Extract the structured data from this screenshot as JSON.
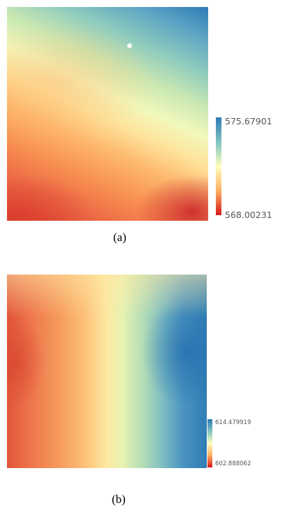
{
  "panels": [
    {
      "caption": "(a)",
      "legend": {
        "max": "575.67901",
        "min": "568.00231",
        "colors": [
          "#2c7bb6",
          "#80c3c0",
          "#ffffbf",
          "#fdae61",
          "#d7191c"
        ]
      }
    },
    {
      "caption": "(b)",
      "legend": {
        "max": "614.479919",
        "min": "602.888062",
        "colors": [
          "#2c7bb6",
          "#80c3c0",
          "#ffffbf",
          "#fdae61",
          "#d7191c"
        ]
      }
    }
  ]
}
